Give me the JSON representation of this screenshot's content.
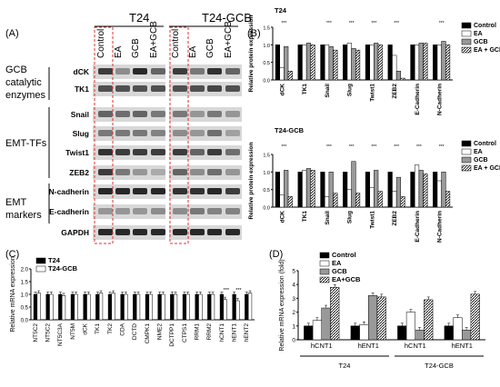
{
  "panelA": {
    "label": "(A)",
    "group_t24": "T24",
    "group_t24gcb": "T24-GCB",
    "lanes": [
      "Control",
      "EA",
      "GCB",
      "EA+GCB"
    ],
    "sections": [
      "GCB catalytic enzymes",
      "EMT-TFs",
      "EMT markers"
    ],
    "proteins": [
      "dCK",
      "TK1",
      "Snail",
      "Slug",
      "Twist1",
      "ZEB2",
      "N-cadherin",
      "E-cadherin",
      "GAPDH"
    ]
  },
  "panelB": {
    "label": "(B)",
    "ylabel": "Relative protein expression",
    "legend": [
      "Control",
      "EA",
      "GCB",
      "EA + GCB"
    ],
    "proteins": [
      "dCK",
      "TK1",
      "Snail",
      "Slug",
      "Twist1",
      "ZEB2",
      "E-Cadherin",
      "N-Cadherin"
    ],
    "top": {
      "title": "T24",
      "ytick": [
        "0.0",
        "0.5",
        "1.0",
        "1.5"
      ]
    },
    "bottom": {
      "title": "T24-GCB",
      "ytick": [
        "0.0",
        "0.5",
        "1.0",
        "1.5"
      ]
    }
  },
  "panelC": {
    "label": "(C)",
    "ylabel": "Relative mRNA expression",
    "legend": [
      "T24",
      "T24-GCB"
    ],
    "yticks": [
      "0.0",
      "0.5",
      "1.0",
      "1.5",
      "2.0"
    ],
    "sig": "***"
  },
  "panelD": {
    "label": "(D)",
    "ylabel": "Relative mRNA expression (fold)",
    "legend": [
      "Control",
      "EA",
      "GCB",
      "EA+GCB"
    ],
    "yticks": [
      "0",
      "1",
      "2",
      "3",
      "4",
      "5"
    ],
    "groups": [
      "T24",
      "T24-GCB"
    ]
  },
  "chart_data": [
    {
      "type": "bar",
      "title": "T24",
      "ylabel": "Relative protein expression",
      "ylim": [
        0,
        1.5
      ],
      "categories": [
        "dCK",
        "TK1",
        "Snail",
        "Slug",
        "Twist1",
        "ZEB2",
        "E-Cadherin",
        "N-Cadherin"
      ],
      "series": [
        {
          "name": "Control",
          "values": [
            1.0,
            1.0,
            1.0,
            1.0,
            1.0,
            1.0,
            1.0,
            1.0
          ]
        },
        {
          "name": "EA",
          "values": [
            0.35,
            1.0,
            1.0,
            1.05,
            1.0,
            0.7,
            1.0,
            1.0
          ]
        },
        {
          "name": "GCB",
          "values": [
            0.95,
            1.05,
            0.95,
            0.9,
            1.05,
            0.25,
            1.05,
            1.1
          ]
        },
        {
          "name": "EA + GCB",
          "values": [
            0.25,
            1.0,
            0.85,
            0.85,
            1.0,
            0.05,
            1.05,
            1.0
          ]
        }
      ]
    },
    {
      "type": "bar",
      "title": "T24-GCB",
      "ylabel": "Relative protein expression",
      "ylim": [
        0,
        1.5
      ],
      "categories": [
        "dCK",
        "TK1",
        "Snail",
        "Slug",
        "Twist1",
        "ZEB2",
        "E-Cadherin",
        "N-Cadherin"
      ],
      "series": [
        {
          "name": "Control",
          "values": [
            1.0,
            1.0,
            1.0,
            1.0,
            1.0,
            1.0,
            1.0,
            1.0
          ]
        },
        {
          "name": "EA",
          "values": [
            0.35,
            1.05,
            0.3,
            0.5,
            0.55,
            0.45,
            1.2,
            0.75
          ]
        },
        {
          "name": "GCB",
          "values": [
            1.05,
            1.1,
            1.0,
            1.3,
            1.05,
            0.85,
            1.05,
            1.0
          ]
        },
        {
          "name": "EA + GCB",
          "values": [
            0.3,
            1.05,
            0.4,
            0.4,
            0.45,
            0.3,
            0.95,
            0.45
          ]
        }
      ]
    },
    {
      "type": "bar",
      "ylabel": "Relative mRNA expression",
      "ylim": [
        0,
        2.0
      ],
      "categories": [
        "NT5C2",
        "NT5C2",
        "NT5C3A",
        "NT5M",
        "dCK",
        "TK1",
        "TK2",
        "CDA",
        "DCTD",
        "CMPK1",
        "NME2",
        "DCTPP1",
        "CTPS1",
        "RRM1",
        "RRM2",
        "hCNT1",
        "hENT1",
        "hENT2"
      ],
      "series": [
        {
          "name": "T24",
          "values": [
            1,
            1,
            1,
            1,
            1,
            1,
            1,
            1,
            1,
            1,
            1,
            1,
            1,
            1,
            1,
            1,
            1,
            1
          ]
        },
        {
          "name": "T24-GCB",
          "values": [
            1.05,
            1.0,
            0.95,
            1.0,
            1.0,
            1.05,
            1.05,
            1.0,
            1.0,
            1.0,
            1.0,
            1.0,
            1.0,
            1.0,
            1.0,
            0.8,
            0.75,
            1.05
          ]
        }
      ]
    },
    {
      "type": "bar",
      "ylabel": "Relative mRNA expression (fold)",
      "ylim": [
        0,
        5
      ],
      "categories": [
        "hCNT1",
        "hENT1",
        "hCNT1",
        "hENT1"
      ],
      "series": [
        {
          "name": "Control",
          "values": [
            1.0,
            1.0,
            1.0,
            1.0
          ]
        },
        {
          "name": "EA",
          "values": [
            1.4,
            1.1,
            2.0,
            1.6
          ]
        },
        {
          "name": "GCB",
          "values": [
            2.3,
            3.2,
            0.7,
            0.7
          ]
        },
        {
          "name": "EA+GCB",
          "values": [
            3.8,
            3.1,
            2.9,
            3.3
          ]
        }
      ]
    }
  ]
}
